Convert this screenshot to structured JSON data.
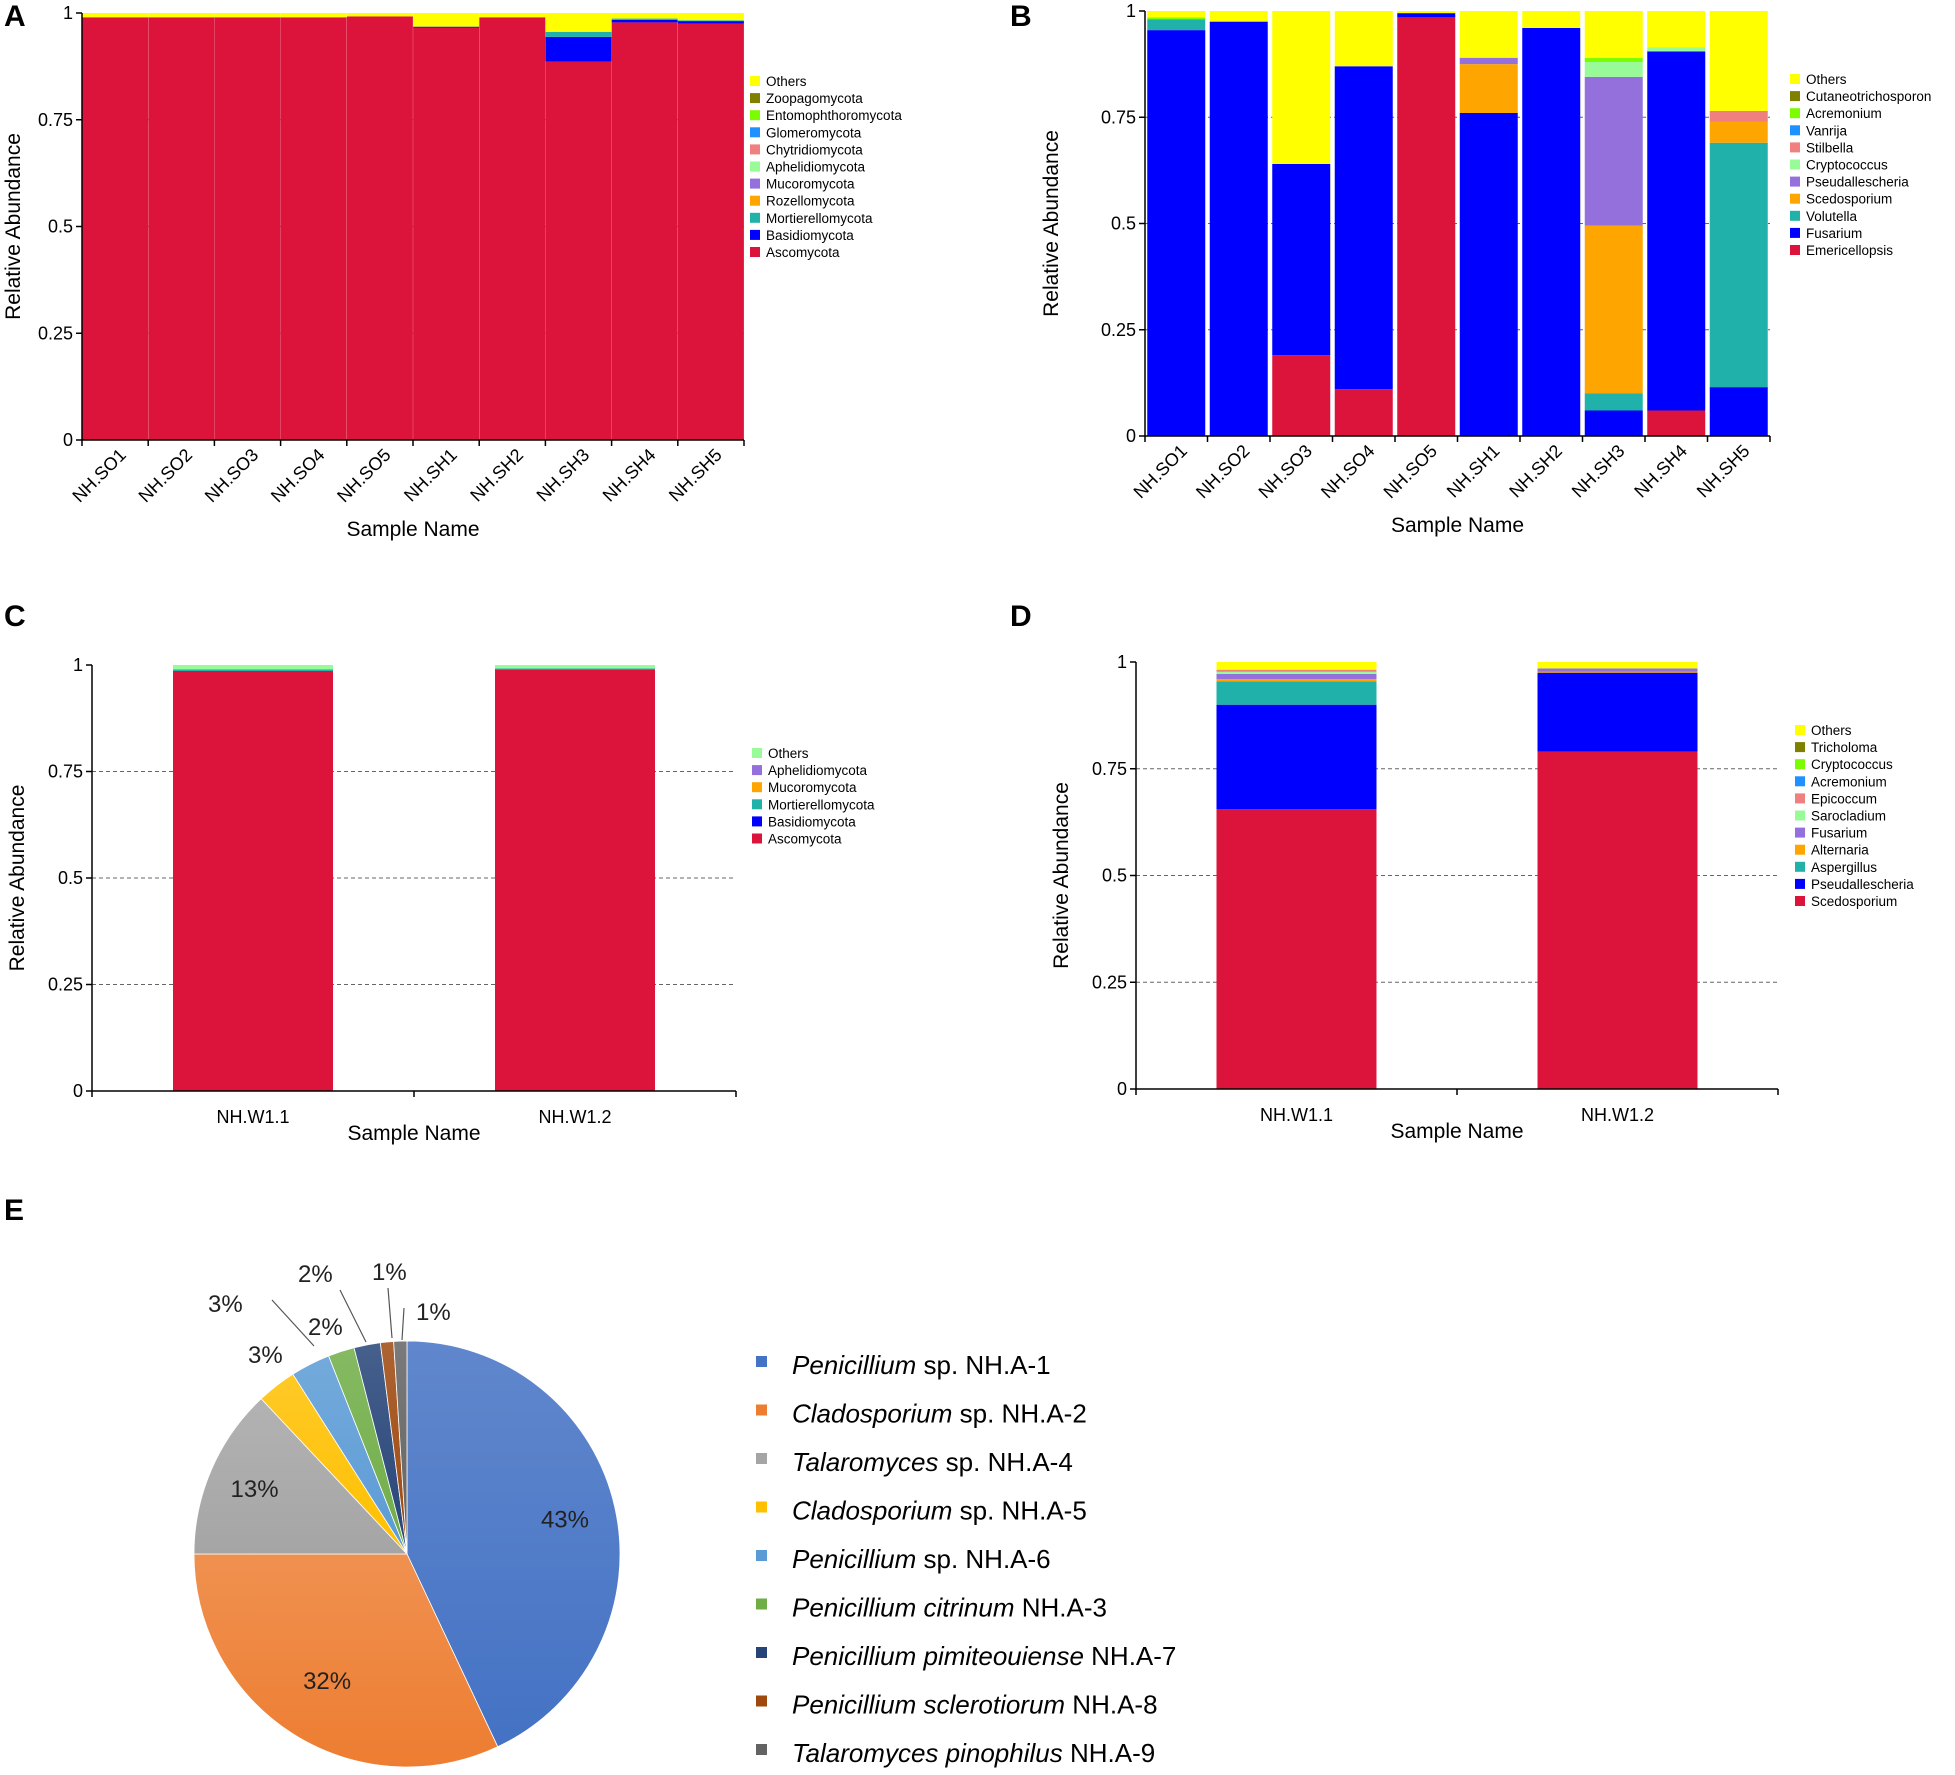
{
  "panel_labels": [
    "A",
    "B",
    "C",
    "D",
    "E"
  ],
  "chart_data": [
    {
      "panel": "A",
      "type": "bar",
      "stacked": true,
      "ylabel": "Relative Abundance",
      "xlabel": "Sample Name",
      "ylim": [
        0,
        1
      ],
      "ytick_labels": [
        "0",
        "0.25",
        "0.5",
        "0.75",
        "1"
      ],
      "categories": [
        "NH.SO1",
        "NH.SO2",
        "NH.SO3",
        "NH.SO4",
        "NH.SO5",
        "NH.SH1",
        "NH.SH2",
        "NH.SH3",
        "NH.SH4",
        "NH.SH5"
      ],
      "series": [
        {
          "name": "Ascomycota",
          "color": "#dc143c",
          "values": [
            0.99,
            0.99,
            0.99,
            0.99,
            0.992,
            0.966,
            0.99,
            0.886,
            0.978,
            0.975
          ]
        },
        {
          "name": "Basidiomycota",
          "color": "#0000ff",
          "values": [
            0,
            0,
            0,
            0,
            0,
            0.002,
            0,
            0.058,
            0.006,
            0.006
          ]
        },
        {
          "name": "Mortierellomycota",
          "color": "#20b2aa",
          "values": [
            0,
            0,
            0,
            0,
            0,
            0,
            0,
            0.012,
            0.003,
            0.002
          ]
        },
        {
          "name": "Rozellomycota",
          "color": "#ffa500",
          "values": [
            0,
            0,
            0,
            0,
            0,
            0,
            0,
            0,
            0,
            0
          ]
        },
        {
          "name": "Mucoromycota",
          "color": "#9370db",
          "values": [
            0,
            0,
            0,
            0,
            0,
            0,
            0,
            0,
            0,
            0
          ]
        },
        {
          "name": "Aphelidiomycota",
          "color": "#98fb98",
          "values": [
            0,
            0,
            0,
            0,
            0,
            0,
            0,
            0,
            0,
            0
          ]
        },
        {
          "name": "Chytridiomycota",
          "color": "#f08080",
          "values": [
            0,
            0,
            0,
            0,
            0,
            0,
            0,
            0,
            0,
            0
          ]
        },
        {
          "name": "Glomeromycota",
          "color": "#1e90ff",
          "values": [
            0,
            0,
            0,
            0,
            0,
            0,
            0,
            0,
            0,
            0
          ]
        },
        {
          "name": "Entomophthoromycota",
          "color": "#7cfc00",
          "values": [
            0,
            0,
            0,
            0,
            0,
            0,
            0,
            0,
            0,
            0
          ]
        },
        {
          "name": "Zoopagomycota",
          "color": "#808000",
          "values": [
            0,
            0,
            0,
            0,
            0,
            0,
            0,
            0,
            0,
            0
          ]
        },
        {
          "name": "Others",
          "color": "#ffff00",
          "values": [
            0.01,
            0.01,
            0.01,
            0.01,
            0.008,
            0.032,
            0.01,
            0.044,
            0.013,
            0.017
          ]
        }
      ],
      "legend": [
        "Others",
        "Zoopagomycota",
        "Entomophthoromycota",
        "Glomeromycota",
        "Chytridiomycota",
        "Aphelidiomycota",
        "Mucoromycota",
        "Rozellomycota",
        "Mortierellomycota",
        "Basidiomycota",
        "Ascomycota"
      ]
    },
    {
      "panel": "B",
      "type": "bar",
      "stacked": true,
      "ylabel": "Relative Abundance",
      "xlabel": "Sample Name",
      "ylim": [
        0,
        1
      ],
      "ytick_labels": [
        "0",
        "0.25",
        "0.5",
        "0.75",
        "1"
      ],
      "categories": [
        "NH.SO1",
        "NH.SO2",
        "NH.SO3",
        "NH.SO4",
        "NH.SO5",
        "NH.SH1",
        "NH.SH2",
        "NH.SH3",
        "NH.SH4",
        "NH.SH5"
      ],
      "series": [
        {
          "name": "Emericellopsis",
          "color": "#dc143c",
          "values": [
            0,
            0,
            0.19,
            0.11,
            0.985,
            0,
            0,
            0,
            0.06,
            0
          ]
        },
        {
          "name": "Fusarium",
          "color": "#0000ff",
          "values": [
            0.955,
            0.975,
            0.45,
            0.76,
            0.01,
            0.76,
            0.96,
            0.06,
            0.845,
            0.115
          ]
        },
        {
          "name": "Volutella",
          "color": "#20b2aa",
          "values": [
            0.025,
            0,
            0,
            0,
            0,
            0,
            0,
            0.04,
            0,
            0.575
          ]
        },
        {
          "name": "Scedosporium",
          "color": "#ffa500",
          "values": [
            0,
            0,
            0,
            0,
            0,
            0.115,
            0,
            0.395,
            0,
            0.05
          ]
        },
        {
          "name": "Pseudallescheria",
          "color": "#9370db",
          "values": [
            0,
            0,
            0,
            0,
            0,
            0.015,
            0,
            0.35,
            0,
            0
          ]
        },
        {
          "name": "Cryptococcus",
          "color": "#98fb98",
          "values": [
            0,
            0,
            0,
            0,
            0,
            0,
            0,
            0.035,
            0.01,
            0
          ]
        },
        {
          "name": "Stilbella",
          "color": "#f08080",
          "values": [
            0,
            0,
            0,
            0,
            0,
            0,
            0,
            0,
            0,
            0.025
          ]
        },
        {
          "name": "Vanrija",
          "color": "#1e90ff",
          "values": [
            0,
            0,
            0,
            0,
            0,
            0,
            0,
            0,
            0,
            0
          ]
        },
        {
          "name": "Acremonium",
          "color": "#7cfc00",
          "values": [
            0.005,
            0,
            0,
            0,
            0,
            0,
            0,
            0.01,
            0,
            0
          ]
        },
        {
          "name": "Cutaneotrichosporon",
          "color": "#808000",
          "values": [
            0,
            0,
            0,
            0,
            0,
            0,
            0,
            0,
            0,
            0
          ]
        },
        {
          "name": "Others",
          "color": "#ffff00",
          "values": [
            0.015,
            0.025,
            0.36,
            0.13,
            0.005,
            0.11,
            0.04,
            0.11,
            0.085,
            0.235
          ]
        }
      ],
      "legend": [
        "Others",
        "Cutaneotrichosporon",
        "Acremonium",
        "Vanrija",
        "Stilbella",
        "Cryptococcus",
        "Pseudallescheria",
        "Scedosporium",
        "Volutella",
        "Fusarium",
        "Emericellopsis"
      ]
    },
    {
      "panel": "C",
      "type": "bar",
      "stacked": true,
      "ylabel": "Relative Abundance",
      "xlabel": "Sample Name",
      "ylim": [
        0,
        1
      ],
      "ytick_labels": [
        "0",
        "0.25",
        "0.5",
        "0.75",
        "1"
      ],
      "categories": [
        "NH.W1.1",
        "NH.W1.2"
      ],
      "series": [
        {
          "name": "Ascomycota",
          "color": "#dc143c",
          "values": [
            0.986,
            0.99
          ]
        },
        {
          "name": "Basidiomycota",
          "color": "#0000ff",
          "values": [
            0,
            0
          ]
        },
        {
          "name": "Mortierellomycota",
          "color": "#20b2aa",
          "values": [
            0.004,
            0.002
          ]
        },
        {
          "name": "Mucoromycota",
          "color": "#ffa500",
          "values": [
            0,
            0
          ]
        },
        {
          "name": "Aphelidiomycota",
          "color": "#9370db",
          "values": [
            0,
            0
          ]
        },
        {
          "name": "Others",
          "color": "#98fb98",
          "values": [
            0.01,
            0.008
          ]
        }
      ],
      "legend": [
        "Others",
        "Aphelidiomycota",
        "Mucoromycota",
        "Mortierellomycota",
        "Basidiomycota",
        "Ascomycota"
      ]
    },
    {
      "panel": "D",
      "type": "bar",
      "stacked": true,
      "ylabel": "Relative Abundance",
      "xlabel": "Sample Name",
      "ylim": [
        0,
        1
      ],
      "ytick_labels": [
        "0",
        "0.25",
        "0.5",
        "0.75",
        "1"
      ],
      "categories": [
        "NH.W1.1",
        "NH.W1.2"
      ],
      "series": [
        {
          "name": "Scedosporium",
          "color": "#dc143c",
          "values": [
            0.655,
            0.79
          ]
        },
        {
          "name": "Pseudallescheria",
          "color": "#0000ff",
          "values": [
            0.245,
            0.185
          ]
        },
        {
          "name": "Aspergillus",
          "color": "#20b2aa",
          "values": [
            0.055,
            0
          ]
        },
        {
          "name": "Alternaria",
          "color": "#ffa500",
          "values": [
            0.005,
            0.002
          ]
        },
        {
          "name": "Fusarium",
          "color": "#9370db",
          "values": [
            0.012,
            0.008
          ]
        },
        {
          "name": "Sarocladium",
          "color": "#98fb98",
          "values": [
            0.005,
            0
          ]
        },
        {
          "name": "Epicoccum",
          "color": "#f08080",
          "values": [
            0.005,
            0
          ]
        },
        {
          "name": "Acremonium",
          "color": "#1e90ff",
          "values": [
            0,
            0
          ]
        },
        {
          "name": "Cryptococcus",
          "color": "#7cfc00",
          "values": [
            0,
            0
          ]
        },
        {
          "name": "Tricholoma",
          "color": "#808000",
          "values": [
            0,
            0
          ]
        },
        {
          "name": "Others",
          "color": "#ffff00",
          "values": [
            0.018,
            0.015
          ]
        }
      ],
      "legend": [
        "Others",
        "Tricholoma",
        "Cryptococcus",
        "Acremonium",
        "Epicoccum",
        "Sarocladium",
        "Fusarium",
        "Alternaria",
        "Aspergillus",
        "Pseudallescheria",
        "Scedosporium"
      ]
    },
    {
      "panel": "E",
      "type": "pie",
      "slices": [
        {
          "label": "Penicillium sp. NH.A-1",
          "genus": "Penicillium",
          "rest": " sp. NH.A-1",
          "value": 43,
          "display": "43%",
          "color": "#4472c4"
        },
        {
          "label": "Cladosporium sp. NH.A-2",
          "genus": "Cladosporium",
          "rest": " sp. NH.A-2",
          "value": 32,
          "display": "32%",
          "color": "#ed7d31"
        },
        {
          "label": "Talaromyces sp. NH.A-4",
          "genus": "Talaromyces",
          "rest": " sp. NH.A-4",
          "value": 13,
          "display": "13%",
          "color": "#a5a5a5"
        },
        {
          "label": "Cladosporium sp. NH.A-5",
          "genus": "Cladosporium",
          "rest": " sp. NH.A-5",
          "value": 3,
          "display": "3%",
          "color": "#ffc000"
        },
        {
          "label": "Penicillium sp. NH.A-6",
          "genus": "Penicillium",
          "rest": " sp. NH.A-6",
          "value": 3,
          "display": "3%",
          "color": "#5b9bd5"
        },
        {
          "label": "Penicillium citrinum NH.A-3",
          "genus": "Penicillium citrinum",
          "rest": " NH.A-3",
          "value": 2,
          "display": "2%",
          "color": "#70ad47"
        },
        {
          "label": "Penicillium pimiteouiense NH.A-7",
          "genus": "Penicillium pimiteouiense",
          "rest": " NH.A-7",
          "value": 2,
          "display": "2%",
          "color": "#264478"
        },
        {
          "label": "Penicillium sclerotiorum NH.A-8",
          "genus": "Penicillium sclerotiorum",
          "rest": " NH.A-8",
          "value": 1,
          "display": "1%",
          "color": "#9e480e"
        },
        {
          "label": "Talaromyces pinophilus NH.A-9",
          "genus": "Talaromyces pinophilus",
          "rest": " NH.A-9",
          "value": 1,
          "display": "1%",
          "color": "#636363"
        }
      ]
    }
  ]
}
